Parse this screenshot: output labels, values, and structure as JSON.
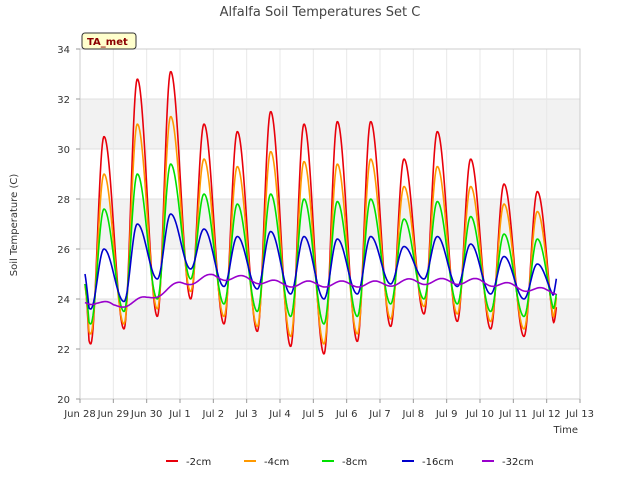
{
  "chart_data": {
    "type": "line",
    "title": "Alfalfa Soil Temperatures Set C",
    "xlabel": "Time",
    "ylabel": "Soil Temperature (C)",
    "xlim": [
      "Jun 28",
      "Jul 13"
    ],
    "ylim": [
      20,
      34
    ],
    "y_ticks": [
      20,
      22,
      24,
      26,
      28,
      30,
      32,
      34
    ],
    "x_ticks": [
      {
        "day": 0,
        "label": "Jun 28"
      },
      {
        "day": 1,
        "label": "Jun 29"
      },
      {
        "day": 2,
        "label": "Jun 30"
      },
      {
        "day": 3,
        "label": "Jul 1"
      },
      {
        "day": 4,
        "label": "Jul 2"
      },
      {
        "day": 5,
        "label": "Jul 3"
      },
      {
        "day": 6,
        "label": "Jul 4"
      },
      {
        "day": 7,
        "label": "Jul 5"
      },
      {
        "day": 8,
        "label": "Jul 6"
      },
      {
        "day": 9,
        "label": "Jul 7"
      },
      {
        "day": 10,
        "label": "Jul 8"
      },
      {
        "day": 11,
        "label": "Jul 9"
      },
      {
        "day": 12,
        "label": "Jul 10"
      },
      {
        "day": 13,
        "label": "Jul 11"
      },
      {
        "day": 14,
        "label": "Jul 12"
      },
      {
        "day": 15,
        "label": "Jul 13"
      }
    ],
    "grid": true,
    "legend_position": "bottom",
    "annotation": "TA_met",
    "series": [
      {
        "name": "-2cm",
        "color": "#e8000b",
        "min": [
          22.2,
          22.8,
          23.3,
          24.0,
          23.0,
          22.7,
          22.1,
          21.8,
          22.3,
          22.9,
          23.4,
          23.1,
          22.8,
          22.5
        ],
        "max": [
          30.5,
          32.8,
          33.1,
          31.0,
          30.7,
          31.5,
          31.0,
          31.1,
          31.1,
          29.6,
          30.7,
          29.6,
          28.6,
          28.3
        ],
        "start": 24.6,
        "end": 23.8
      },
      {
        "name": "-4cm",
        "color": "#ff9900",
        "min": [
          22.6,
          23.0,
          23.6,
          24.3,
          23.3,
          22.9,
          22.5,
          22.2,
          22.6,
          23.2,
          23.7,
          23.4,
          23.1,
          22.8
        ],
        "max": [
          29.0,
          31.0,
          31.3,
          29.6,
          29.3,
          29.9,
          29.5,
          29.4,
          29.6,
          28.5,
          29.3,
          28.5,
          27.8,
          27.5
        ],
        "start": 24.5,
        "end": 24.2
      },
      {
        "name": "-8cm",
        "color": "#00e000",
        "min": [
          23.0,
          23.5,
          24.0,
          24.8,
          23.8,
          23.5,
          23.3,
          23.0,
          23.3,
          23.8,
          24.0,
          23.8,
          23.5,
          23.3
        ],
        "max": [
          27.6,
          29.0,
          29.4,
          28.2,
          27.8,
          28.2,
          28.0,
          27.9,
          28.0,
          27.2,
          27.9,
          27.3,
          26.6,
          26.4
        ],
        "start": 24.6,
        "end": 24.3
      },
      {
        "name": "-16cm",
        "color": "#0000cc",
        "min": [
          23.6,
          23.9,
          24.8,
          25.2,
          24.5,
          24.4,
          24.2,
          24.0,
          24.2,
          24.6,
          24.8,
          24.5,
          24.2,
          24.0
        ],
        "max": [
          26.0,
          27.0,
          27.4,
          26.8,
          26.5,
          26.7,
          26.5,
          26.4,
          26.5,
          26.1,
          26.5,
          26.2,
          25.7,
          25.4
        ],
        "start": 25.0,
        "end": 24.9
      },
      {
        "name": "-32cm",
        "color": "#9900cc",
        "trend": [
          [
            0,
            23.9
          ],
          [
            0.5,
            23.9
          ],
          [
            1,
            23.7
          ],
          [
            2,
            24.0
          ],
          [
            3,
            24.6
          ],
          [
            4,
            24.9
          ],
          [
            5,
            24.8
          ],
          [
            6,
            24.6
          ],
          [
            7,
            24.6
          ],
          [
            8,
            24.6
          ],
          [
            9,
            24.6
          ],
          [
            10,
            24.7
          ],
          [
            11,
            24.7
          ],
          [
            12,
            24.7
          ],
          [
            13,
            24.5
          ],
          [
            14,
            24.3
          ],
          [
            14.3,
            24.3
          ]
        ],
        "amplitude": 0.12
      }
    ]
  }
}
